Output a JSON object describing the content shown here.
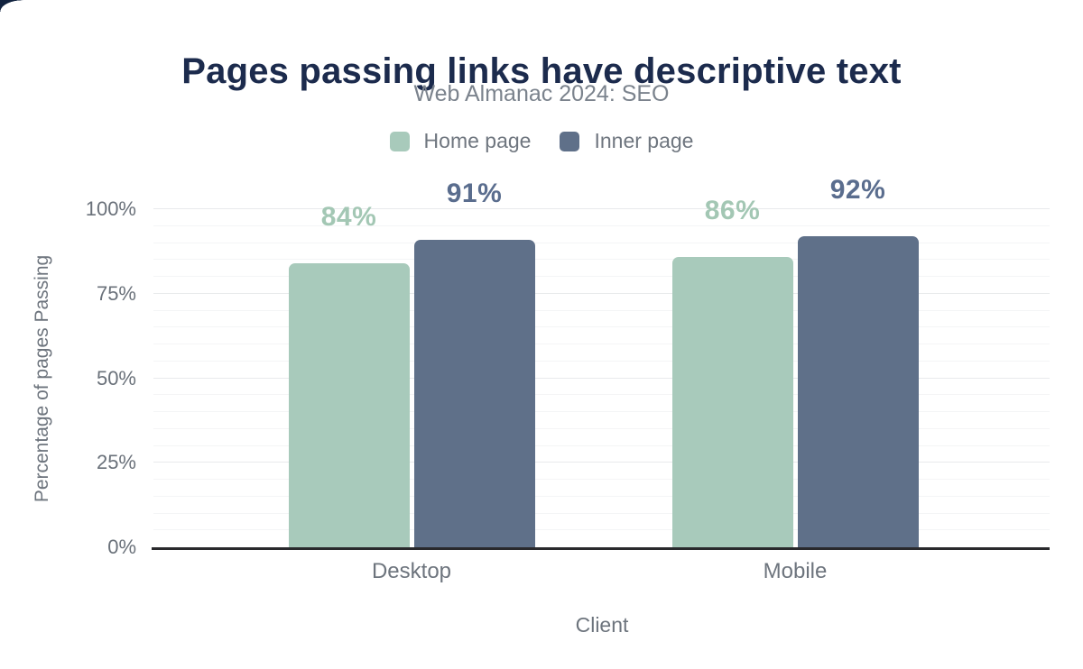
{
  "chart_data": {
    "type": "bar",
    "title": "Pages passing links have descriptive text",
    "subtitle": "Web Almanac 2024: SEO",
    "categories": [
      "Desktop",
      "Mobile"
    ],
    "series": [
      {
        "name": "Home page",
        "color": "#a8cabb",
        "label_color": "#a3c7b4",
        "values": [
          84,
          86
        ]
      },
      {
        "name": "Inner page",
        "color": "#5f7089",
        "label_color": "#5a6d8e",
        "values": [
          91,
          92
        ]
      }
    ],
    "value_suffix": "%",
    "xlabel": "Client",
    "ylabel": "Percentage of pages Passing",
    "y_ticks": [
      "0%",
      "25%",
      "50%",
      "75%",
      "100%"
    ],
    "ylim": [
      0,
      100
    ],
    "grid": "horizontal, minor every 5, major every 25",
    "legend_position": "top",
    "legend_labels": [
      "Home page",
      "Inner page"
    ]
  },
  "colors": {
    "title": "#1c2b4d",
    "subtitle_text": "#7b838d",
    "axis_text": "#6a717a",
    "home_series": "#a8cabb",
    "inner_series": "#5f7089",
    "baseline": "#29292c"
  }
}
